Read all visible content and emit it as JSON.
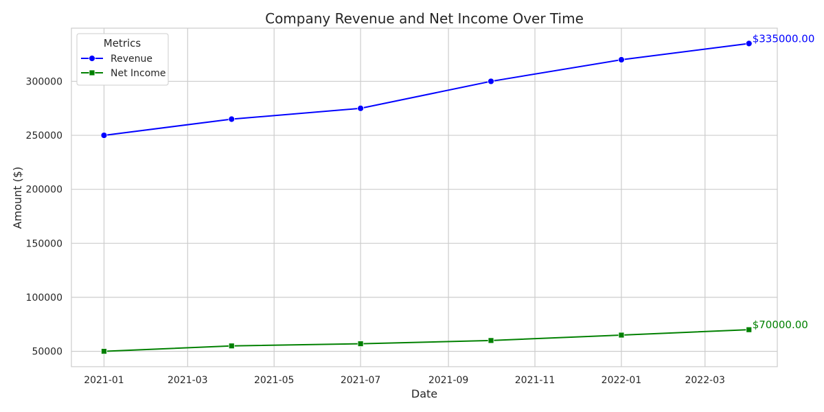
{
  "chart_data": {
    "type": "line",
    "title": "Company Revenue and Net Income Over Time",
    "xlabel": "Date",
    "ylabel": "Amount ($)",
    "x": [
      "2021-01-01",
      "2021-04-01",
      "2021-07-01",
      "2021-10-01",
      "2022-01-01",
      "2022-04-01"
    ],
    "xlim": [
      "2020-12-09",
      "2022-04-21"
    ],
    "x_ticks": [
      "2021-01-01",
      "2021-03-01",
      "2021-05-01",
      "2021-07-01",
      "2021-09-01",
      "2021-11-01",
      "2022-01-01",
      "2022-03-01"
    ],
    "x_tick_labels": [
      "2021-01",
      "2021-03",
      "2021-05",
      "2021-07",
      "2021-09",
      "2021-11",
      "2022-01",
      "2022-03"
    ],
    "ylim": [
      35750,
      349250
    ],
    "y_ticks": [
      50000,
      100000,
      150000,
      200000,
      250000,
      300000
    ],
    "y_tick_labels": [
      "50000",
      "100000",
      "150000",
      "200000",
      "250000",
      "300000"
    ],
    "grid": true,
    "legend": {
      "title": "Metrics",
      "placement": "top-left"
    },
    "series": [
      {
        "name": "Revenue",
        "values": [
          250000,
          265000,
          275000,
          300000,
          320000,
          335000
        ],
        "color": "#0000ff",
        "marker": "circle",
        "end_label": "$335000.00"
      },
      {
        "name": "Net Income",
        "values": [
          50000,
          55000,
          57000,
          60000,
          65000,
          70000
        ],
        "color": "#008000",
        "marker": "square",
        "end_label": "$70000.00"
      }
    ]
  }
}
